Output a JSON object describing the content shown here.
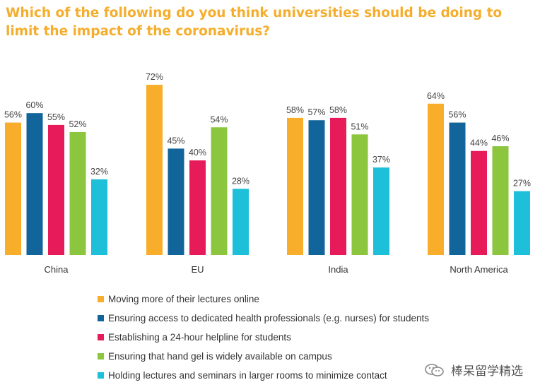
{
  "page": {
    "title": "Which of the following do you think universities should be doing to limit the impact of the coronavirus?"
  },
  "colors": {
    "title": "#f5ad2b",
    "text": "#333333",
    "label": "#444444"
  },
  "chart_data": {
    "type": "bar",
    "title": "Which of the following do you think universities should be doing to limit the impact of the coronavirus?",
    "categories": [
      "China",
      "EU",
      "India",
      "North America"
    ],
    "value_suffix": "%",
    "ylim": [
      0,
      72
    ],
    "grid": false,
    "legend_position": "bottom",
    "series": [
      {
        "name": "Moving more of their lectures online",
        "color": "#f9ae2b",
        "values": [
          56,
          72,
          58,
          64
        ]
      },
      {
        "name": "Ensuring access to dedicated health professionals (e.g. nurses) for students",
        "color": "#12659a",
        "values": [
          60,
          45,
          57,
          56
        ]
      },
      {
        "name": "Establishing a 24-hour helpline for students",
        "color": "#e71a5a",
        "values": [
          55,
          40,
          58,
          44
        ]
      },
      {
        "name": "Ensuring that hand gel is widely available on campus",
        "color": "#8cc63f",
        "values": [
          52,
          54,
          51,
          46
        ]
      },
      {
        "name": "Holding lectures and seminars in larger rooms to minimize contact",
        "color": "#1ebfd8",
        "values": [
          32,
          28,
          37,
          27
        ]
      }
    ]
  },
  "watermark": {
    "text": "棒呆留学精选",
    "icon": "wechat-icon"
  }
}
